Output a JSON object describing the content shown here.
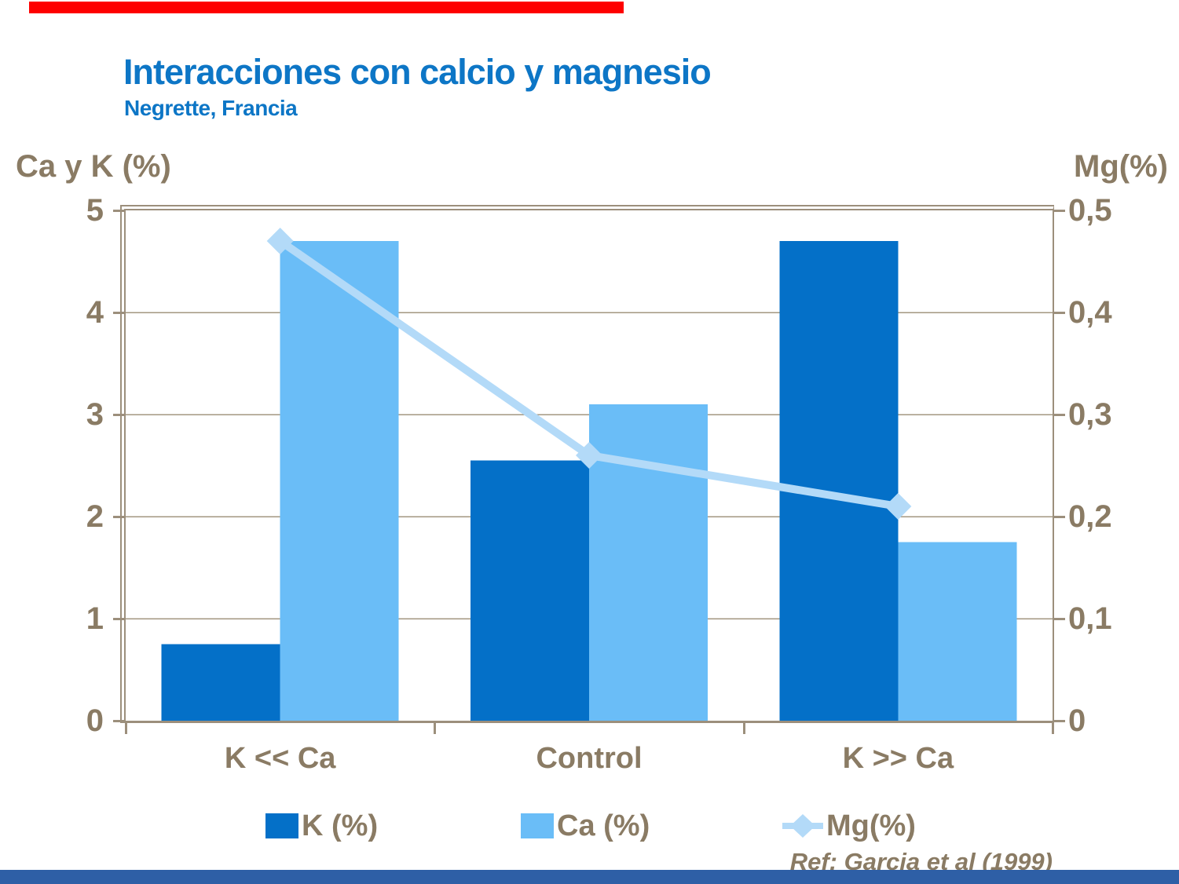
{
  "slide": {
    "title": "Interacciones con calcio y magnesio",
    "subtitle": "Negrette,  Francia",
    "reference": "Ref: Garcia et al (1999)",
    "title_color": "#0D76C6",
    "top_bar_color": "#FE0000",
    "bottom_bar_color": "#2E5FA6"
  },
  "chart_data": {
    "type": "bar",
    "subtype": "grouped bars with secondary-axis line",
    "categories": [
      "K << Ca",
      "Control",
      "K >> Ca"
    ],
    "series": [
      {
        "name": "K (%)",
        "type": "bar",
        "axis": "left",
        "color": "#0470C8",
        "values": [
          0.75,
          2.55,
          4.7
        ]
      },
      {
        "name": "Ca (%)",
        "type": "bar",
        "axis": "left",
        "color": "#6ABDF7",
        "values": [
          4.7,
          3.1,
          1.75
        ]
      },
      {
        "name": "Mg(%)",
        "type": "line",
        "axis": "right",
        "color": "#B3DAF8",
        "marker": "diamond",
        "values": [
          0.47,
          0.26,
          0.21
        ]
      }
    ],
    "left_axis": {
      "title": "Ca y K (%)",
      "min": 0,
      "max": 5,
      "tick_labels": [
        "5",
        "4",
        "3",
        "2",
        "1",
        "0"
      ]
    },
    "right_axis": {
      "title": "Mg(%)",
      "min": 0,
      "max": 0.5,
      "tick_labels": [
        "0,5",
        "0,4",
        "0,3",
        "0,2",
        "0,1",
        "0"
      ]
    },
    "grid": true,
    "legend_position": "bottom",
    "text_color": "#8A7B64",
    "grid_color": "#A39781",
    "border_color": "#9C8F7C"
  }
}
